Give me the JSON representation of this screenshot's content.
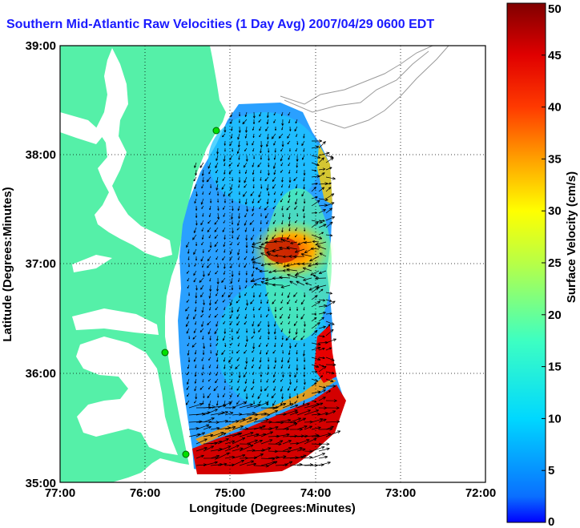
{
  "title": "Southern Mid-Atlantic Raw Velocities (1 Day Avg) 2007/04/29 0600 EDT",
  "map": {
    "x_axis": {
      "label": "Longitude (Degrees:Minutes)",
      "ticks": [
        "77:00",
        "76:00",
        "75:00",
        "74:00",
        "73:00",
        "72:00"
      ]
    },
    "y_axis": {
      "label": "Latitude (Degrees:Minutes)",
      "ticks": [
        "39:00",
        "38:00",
        "37:00",
        "36:00",
        "35:00"
      ]
    },
    "grid": "dotted",
    "land_color": "#55f0a8",
    "water_color": "#ffffff"
  },
  "colorbar": {
    "label": "Surface Velocity (cm/s)",
    "ticks": [
      "50",
      "45",
      "40",
      "35",
      "30",
      "25",
      "20",
      "15",
      "10",
      "5",
      "0"
    ],
    "min": 0,
    "max": 50,
    "colormap": "jet"
  },
  "stations": [
    {
      "name": "station-north",
      "lon": -74.8,
      "lat": 38.2
    },
    {
      "name": "station-mid",
      "lon": -75.6,
      "lat": 36.2
    },
    {
      "name": "station-south",
      "lon": -75.5,
      "lat": 35.3
    }
  ]
}
